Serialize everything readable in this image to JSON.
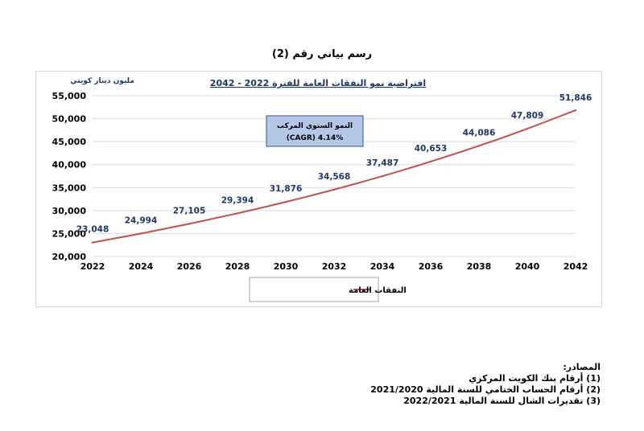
{
  "figure_caption": "رسم بياني رقم (2)",
  "chart_data": {
    "type": "line",
    "title": "افتراضية نمو النفقات العامة للفترة 2022 - 2042",
    "ylabel": "مليون دينار كويتي",
    "xlabel": "",
    "x": [
      2022,
      2024,
      2026,
      2028,
      2030,
      2032,
      2034,
      2036,
      2038,
      2040,
      2042
    ],
    "x_tick_labels": [
      "2022",
      "2024",
      "2026",
      "2028",
      "2030",
      "2032",
      "2034",
      "2036",
      "2038",
      "2040",
      "2042"
    ],
    "series": [
      {
        "name": "النفقات العامة",
        "values": [
          23048,
          24994,
          27105,
          29394,
          31876,
          34568,
          37487,
          40653,
          44086,
          47809,
          51846
        ],
        "data_labels": [
          "23,048",
          "24,994",
          "27,105",
          "29,394",
          "31,876",
          "34,568",
          "37,487",
          "40,653",
          "44,086",
          "47,809",
          "51,846"
        ],
        "color": "#c0504d"
      }
    ],
    "ylim": [
      20000,
      55000
    ],
    "y_ticks": [
      20000,
      25000,
      30000,
      35000,
      40000,
      45000,
      50000,
      55000
    ],
    "y_tick_labels": [
      "20,000",
      "25,000",
      "30,000",
      "35,000",
      "40,000",
      "45,000",
      "50,000",
      "55,000"
    ],
    "grid": true,
    "legend_position": "bottom",
    "annotation": {
      "line1": "النمو السنوي المركب",
      "line2": "(CAGR) 4.14%"
    },
    "colors": {
      "line": "#c0504d",
      "data_label": "#1f3864",
      "grid": "#d9d9d9",
      "annotation_fill": "#b4c7e7",
      "annotation_border": "#2f5597",
      "title": "#1f3864"
    }
  },
  "sources": {
    "heading": "المصادر:",
    "items": [
      "(1) أرقام بنك الكويت المركزي",
      "(2) أرقام الحساب الختامي للسنة المالية 2021/2020",
      "(3) تقديرات الشال للسنة المالية 2022/2021"
    ]
  }
}
